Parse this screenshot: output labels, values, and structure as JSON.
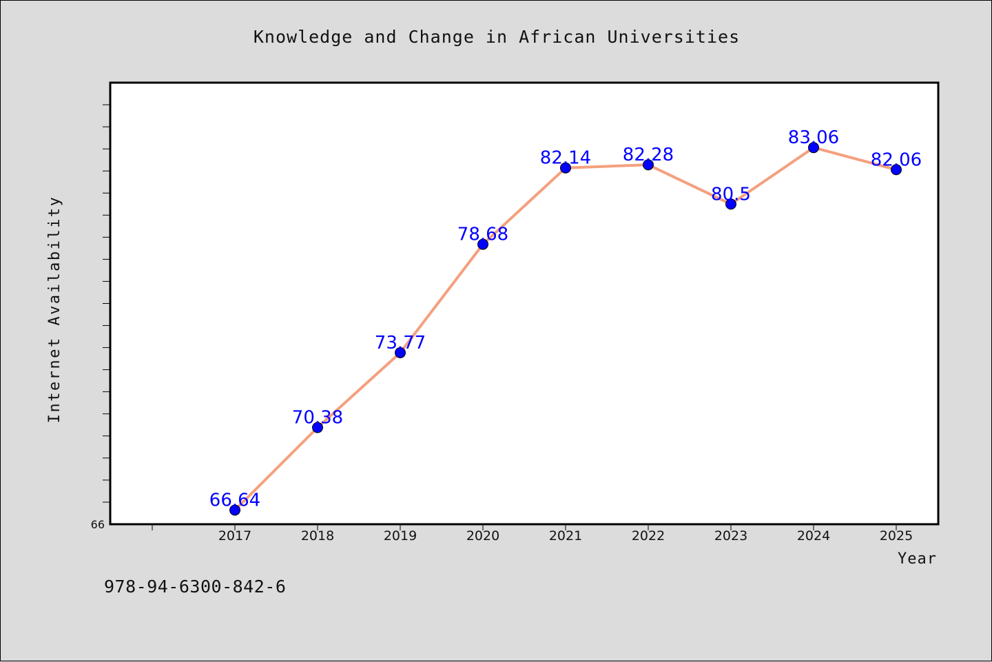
{
  "chart_data": {
    "type": "line",
    "title": "Knowledge and Change in African Universities",
    "xlabel": "Year",
    "ylabel": "Internet Availability",
    "categories": [
      "2017",
      "2018",
      "2019",
      "2020",
      "2021",
      "2022",
      "2023",
      "2024",
      "2025"
    ],
    "series": [
      {
        "values": [
          66.64,
          70.38,
          73.77,
          78.68,
          82.14,
          82.28,
          80.5,
          83.06,
          82.06
        ],
        "data_labels": [
          "66.64",
          "70.38",
          "73.77",
          "78.68",
          "82.14",
          "82.28",
          "80.5",
          "83.06",
          "82.06"
        ],
        "line_color": "#f4a07e",
        "marker_color": "#0000ff",
        "label_color": "#0000ff"
      }
    ],
    "y_tick_labels": [
      "66"
    ],
    "ylim": [
      66,
      86
    ],
    "grid": false,
    "legend": "none"
  },
  "annotation": {
    "isbn": "978-94-6300-842-6"
  },
  "colors": {
    "background": "#dcdcdc",
    "plot_background": "#ffffff",
    "axis": "#000000"
  }
}
